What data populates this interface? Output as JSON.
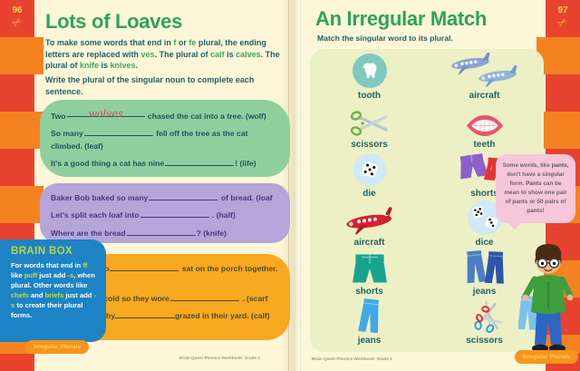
{
  "colors": {
    "stripe_red": "#e8432e",
    "stripe_orange": "#f58220",
    "title_green": "#2da25e",
    "body_teal": "#1d6366",
    "green_box": "#8ecf9d",
    "purple_box": "#b5a5d8",
    "orange_box": "#f7a91f",
    "brain_box_blue": "#1d83c4",
    "badge_orange": "#f7941e",
    "badge_text_yellow": "#ffd34d",
    "bubble_pink": "#f6c6da",
    "panel": "#edf0c5",
    "page_cream": "#fdf6d8",
    "handwriting_red": "#d6495b"
  },
  "page_left": {
    "page_number": "96",
    "title": "Lots of Loaves",
    "intro": [
      {
        "t": "To make some words that end in "
      },
      {
        "t": "f",
        "h": true
      },
      {
        "t": " or "
      },
      {
        "t": "fe",
        "h": true
      },
      {
        "t": " plural, the ending letters are replaced with "
      },
      {
        "t": "ves",
        "h": true
      },
      {
        "t": ". The plural of "
      },
      {
        "t": "calf",
        "h": true
      },
      {
        "t": " is "
      },
      {
        "t": "calves",
        "h": true
      },
      {
        "t": ". The plural of "
      },
      {
        "t": "knife",
        "h": true
      },
      {
        "t": " is "
      },
      {
        "t": "knives",
        "h": true
      },
      {
        "t": "."
      }
    ],
    "instruction": "Write the plural of the singular noun to complete each sentence.",
    "green_box": [
      {
        "pre": "Two",
        "answer": "wolves",
        "post": " chased the cat into a tree. (wolf)"
      },
      {
        "pre": "So many",
        "answer": "",
        "post": " fell off the tree as the cat climbed. (leaf)"
      },
      {
        "pre": "It's a good thing a cat has nine",
        "answer": "",
        "post": "! (life)"
      }
    ],
    "purple_box": [
      {
        "pre": "Baker Bob baked so many",
        "answer": "",
        "post": " of bread. (loaf"
      },
      {
        "pre": "Let's split each loaf into",
        "answer": "",
        "post": " . (half)"
      },
      {
        "pre": "Where are the bread",
        "answer": "",
        "post": "? (knife)"
      }
    ],
    "orange_box": [
      {
        "pre": "The two",
        "answer": "",
        "post": " sat on the porch together. (wife)"
      },
      {
        "pre": "It was cold so they wore",
        "answer": "",
        "post": " . (scarf"
      },
      {
        "pre": "Two baby",
        "answer": "",
        "post": "grazed in their yard. (calf)"
      }
    ],
    "brain_box": {
      "title": "BRAIN BOX",
      "body": [
        {
          "t": "For words that end in "
        },
        {
          "t": "ff",
          "h": true
        },
        {
          "t": " like "
        },
        {
          "t": "puff",
          "h": true
        },
        {
          "t": " just add "
        },
        {
          "t": "-s",
          "h": true
        },
        {
          "t": ", when plural. Other words like "
        },
        {
          "t": "chefs",
          "h": true
        },
        {
          "t": " and "
        },
        {
          "t": "briefs",
          "h": true
        },
        {
          "t": " just add "
        },
        {
          "t": "-s",
          "h": true
        },
        {
          "t": " to create their plural forms."
        }
      ]
    },
    "badge": "Irregular Plurals",
    "footer": "Brain Quest Phonics Workbook: Grade 2"
  },
  "page_right": {
    "page_number": "97",
    "title": "An Irregular Match",
    "subtitle": "Match the singular word to its plural.",
    "rows": [
      {
        "left": {
          "label": "tooth",
          "icon": "tooth-icon"
        },
        "right": {
          "label": "aircraft",
          "icon": "aircraft-pair-icon"
        }
      },
      {
        "left": {
          "label": "scissors",
          "icon": "scissors-icon"
        },
        "right": {
          "label": "teeth",
          "icon": "teeth-icon"
        }
      },
      {
        "left": {
          "label": "die",
          "icon": "die-icon"
        },
        "right": {
          "label": "shorts",
          "icon": "shorts-pair-icon"
        }
      },
      {
        "left": {
          "label": "aircraft",
          "icon": "airplane-icon"
        },
        "right": {
          "label": "dice",
          "icon": "dice-pair-icon"
        }
      },
      {
        "left": {
          "label": "shorts",
          "icon": "shorts-icon"
        },
        "right": {
          "label": "jeans",
          "icon": "jeans-pair-icon"
        }
      },
      {
        "left": {
          "label": "jeans",
          "icon": "jeans-icon"
        },
        "right": {
          "label": "scissors",
          "icon": "scissors-pair-icon"
        }
      }
    ],
    "bubble": [
      {
        "t": "Some words, like "
      },
      {
        "t": "pants",
        "h": true
      },
      {
        "t": ", don't have a singular form. "
      },
      {
        "t": "Pants",
        "h": true
      },
      {
        "t": " can be mean to show one pair of pants or 50 pairs of pants!"
      }
    ],
    "badge": "Irregular Plurals",
    "footer": "Brain Quest Phonics Workbook: Grade 2"
  }
}
